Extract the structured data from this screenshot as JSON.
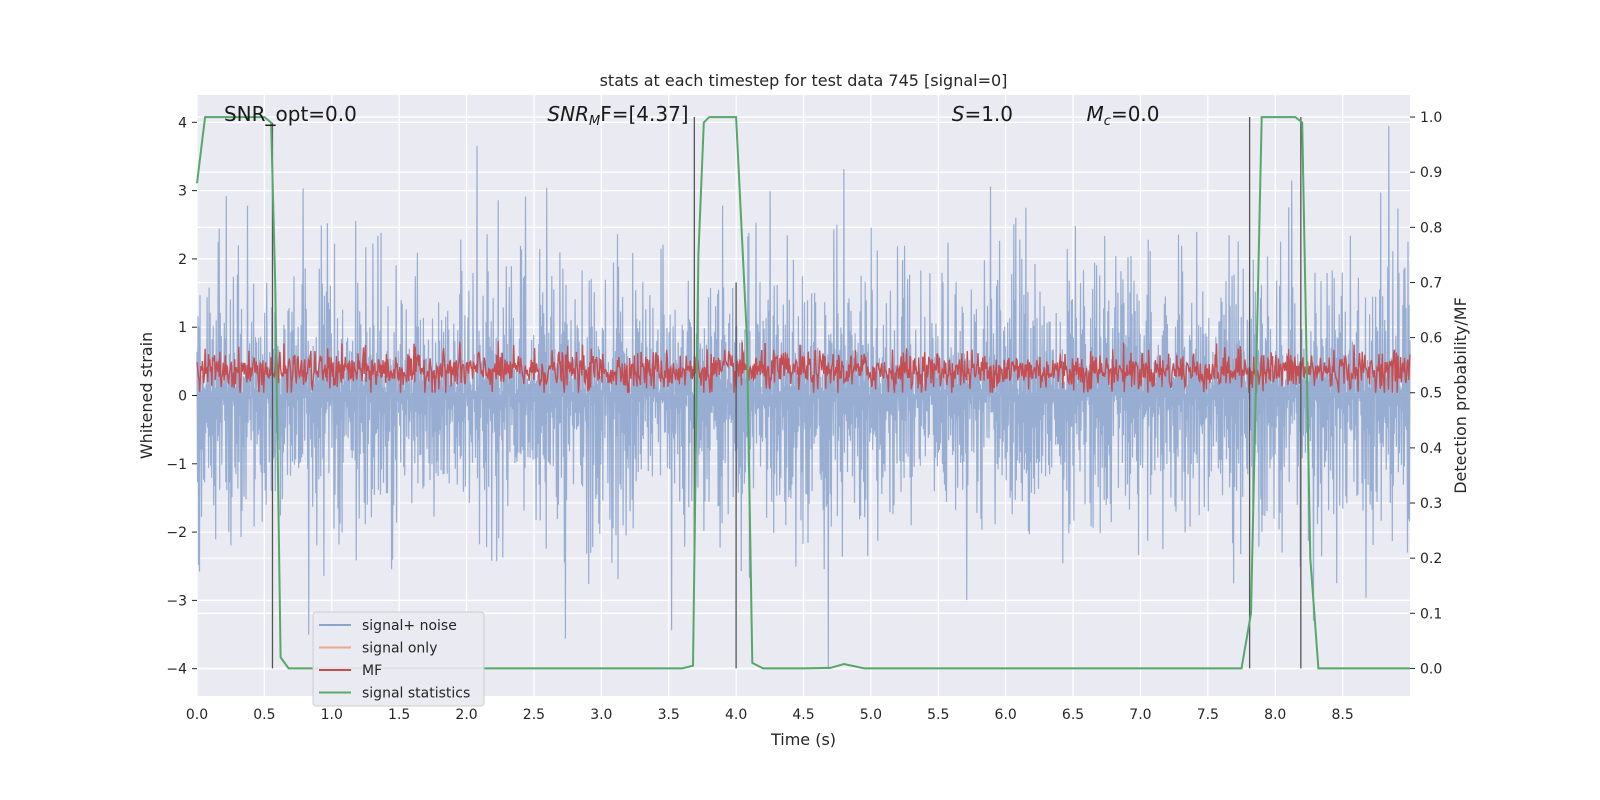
{
  "chart_data": {
    "type": "line",
    "title": "stats at each timestep for test data 745 [signal=0]",
    "xlabel": "Time (s)",
    "ylabel": "Whitened strain",
    "y2label": "Detection probability/MF",
    "xlim": [
      0.0,
      9.0
    ],
    "ylim": [
      -4.4,
      4.4
    ],
    "y2lim": [
      -0.05,
      1.04
    ],
    "x_ticks": [
      "0.0",
      "0.5",
      "1.0",
      "1.5",
      "2.0",
      "2.5",
      "3.0",
      "3.5",
      "4.0",
      "4.5",
      "5.0",
      "5.5",
      "6.0",
      "6.5",
      "7.0",
      "7.5",
      "8.0",
      "8.5"
    ],
    "x_tick_values": [
      0.0,
      0.5,
      1.0,
      1.5,
      2.0,
      2.5,
      3.0,
      3.5,
      4.0,
      4.5,
      5.0,
      5.5,
      6.0,
      6.5,
      7.0,
      7.5,
      8.0,
      8.5
    ],
    "y_ticks": [
      "−4",
      "−3",
      "−2",
      "−1",
      "0",
      "1",
      "2",
      "3",
      "4"
    ],
    "y_tick_values": [
      -4,
      -3,
      -2,
      -1,
      0,
      1,
      2,
      3,
      4
    ],
    "y2_ticks": [
      "0.0",
      "0.1",
      "0.2",
      "0.3",
      "0.4",
      "0.5",
      "0.6",
      "0.7",
      "0.8",
      "0.9",
      "1.0"
    ],
    "y2_tick_values": [
      0.0,
      0.1,
      0.2,
      0.3,
      0.4,
      0.5,
      0.6,
      0.7,
      0.8,
      0.9,
      1.0
    ],
    "grid": true,
    "legend_position": "lower-left",
    "annotations": [
      {
        "text": "SNR_opt=0.0",
        "x": 0.2
      },
      {
        "text": "SNR",
        "sub": "M",
        "text2": "F=[4.37]",
        "x": 2.6,
        "italic": true
      },
      {
        "text": "S",
        "text2": "=1.0",
        "x": 5.6,
        "italic": true
      },
      {
        "text": "M",
        "sub": "c",
        "text2": "=0.0",
        "x": 6.6,
        "italic": true
      }
    ],
    "series": [
      {
        "name": "signal+ noise",
        "color": "#8aa2cc",
        "axis": "left",
        "summary": {
          "typical_range": [
            -2.5,
            2.5
          ],
          "min": -4.0,
          "max": 3.8
        }
      },
      {
        "name": "signal only",
        "color": "#e9a888",
        "axis": "left",
        "values": []
      },
      {
        "name": "MF",
        "color": "#c44e52",
        "axis": "right",
        "summary": {
          "range": [
            0.5,
            0.6
          ]
        }
      },
      {
        "name": "signal statistics",
        "color": "#55a868",
        "axis": "right",
        "x": [
          0.0,
          0.06,
          0.5,
          0.55,
          0.58,
          0.62,
          0.68,
          3.6,
          3.68,
          3.72,
          3.76,
          3.8,
          4.0,
          4.08,
          4.12,
          4.2,
          4.5,
          4.7,
          4.8,
          4.95,
          7.75,
          7.82,
          7.9,
          8.15,
          8.2,
          8.26,
          8.32,
          9.0
        ],
        "values": [
          0.88,
          1.0,
          1.0,
          0.99,
          0.7,
          0.02,
          0.0,
          0.0,
          0.005,
          0.75,
          0.99,
          1.0,
          1.0,
          0.6,
          0.01,
          0.0,
          0.0,
          0.001,
          0.008,
          0.0,
          0.0,
          0.1,
          1.0,
          1.0,
          0.99,
          0.2,
          0.0,
          0.0
        ]
      }
    ],
    "vertical_markers": [
      {
        "x": 0.56,
        "y2_from": 0.0,
        "y2_to": 0.99
      },
      {
        "x": 3.69,
        "y2_from": 0.22,
        "y2_to": 1.0
      },
      {
        "x": 4.0,
        "y2_from": 0.0,
        "y2_to": 0.7
      },
      {
        "x": 7.81,
        "y2_from": 0.0,
        "y2_to": 1.0
      },
      {
        "x": 8.19,
        "y2_from": 0.0,
        "y2_to": 1.0
      }
    ]
  }
}
